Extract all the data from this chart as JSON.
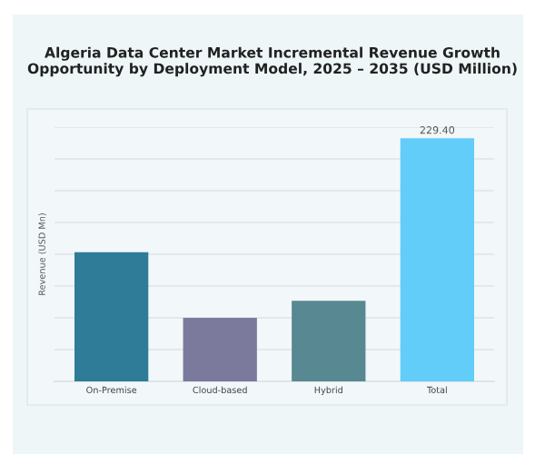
{
  "chart_data": {
    "type": "bar",
    "title": "Algeria Data Center Market Incremental Revenue Growth Opportunity by Deployment Model, 2025 – 2035 (USD Million)",
    "ylabel": "Revenue (USD Mn)",
    "tick_labels": "x",
    "ylim": [
      0,
      240
    ],
    "yticks": [
      {
        "value": 0,
        "label": null
      },
      {
        "value": 30,
        "label": null
      },
      {
        "value": 60,
        "label": null
      },
      {
        "value": 90,
        "label": null
      },
      {
        "value": 120,
        "label": null
      },
      {
        "value": 150,
        "label": null
      },
      {
        "value": 180,
        "label": null
      },
      {
        "value": 210,
        "label": null
      },
      {
        "value": 240,
        "label": null
      }
    ],
    "categories": [
      "On-Premise",
      "Cloud-based",
      "Hybrid",
      "Total"
    ],
    "values": [
      122,
      60,
      76,
      229.4
    ],
    "colors": [
      "#2e7c98",
      "#7c7a9c",
      "#588892",
      "#62cdf8"
    ],
    "value_labels": [
      null,
      null,
      null,
      "229.40"
    ],
    "grid": "y"
  }
}
